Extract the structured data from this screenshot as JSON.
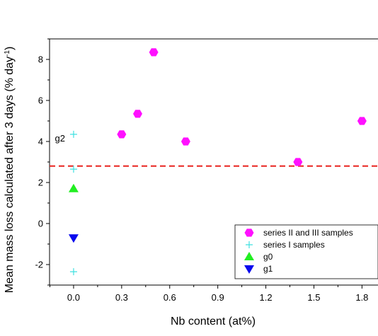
{
  "chart_data": {
    "type": "scatter",
    "xlabel": "Nb content (at%)",
    "ylabel": "Mean mass loss calculated after 3 days (% day",
    "ylabel_sup": "-1",
    "ylabel_close": ")",
    "xlim": [
      -0.15,
      1.9
    ],
    "ylim": [
      -3,
      9
    ],
    "x_ticks": [
      0.0,
      0.3,
      0.6,
      0.9,
      1.2,
      1.5,
      1.8
    ],
    "x_tick_labels": [
      "0.0",
      "0.3",
      "0.6",
      "0.9",
      "1.2",
      "1.5",
      "1.8"
    ],
    "y_ticks": [
      -2,
      0,
      2,
      4,
      6,
      8
    ],
    "y_tick_labels": [
      "-2",
      "0",
      "2",
      "4",
      "6",
      "8"
    ],
    "grid": false,
    "reference_line": {
      "y": 2.8,
      "style": "dashed",
      "color": "#e8231f"
    },
    "annotations": [
      {
        "text": "g2",
        "x": 0.0,
        "y": 4.1
      }
    ],
    "legend_position": "bottom-right",
    "series": [
      {
        "name": "series II and III samples",
        "marker": "hexagon",
        "color": "#ff10ff",
        "points": [
          {
            "x": 0.3,
            "y": 4.35
          },
          {
            "x": 0.4,
            "y": 5.35
          },
          {
            "x": 0.5,
            "y": 8.35
          },
          {
            "x": 0.7,
            "y": 4.0
          },
          {
            "x": 1.4,
            "y": 3.0
          },
          {
            "x": 1.8,
            "y": 5.0
          }
        ]
      },
      {
        "name": "series I samples",
        "marker": "plus",
        "color": "#3fe0e0",
        "points": [
          {
            "x": 0.0,
            "y": 4.35
          },
          {
            "x": 0.0,
            "y": 2.65
          },
          {
            "x": 0.0,
            "y": -2.35
          }
        ]
      },
      {
        "name": "g0",
        "marker": "triangle-up",
        "color": "#22ee22",
        "points": [
          {
            "x": 0.0,
            "y": 1.7
          }
        ]
      },
      {
        "name": "g1",
        "marker": "triangle-down",
        "color": "#0a0aee",
        "points": [
          {
            "x": 0.0,
            "y": -0.7
          }
        ]
      }
    ]
  }
}
